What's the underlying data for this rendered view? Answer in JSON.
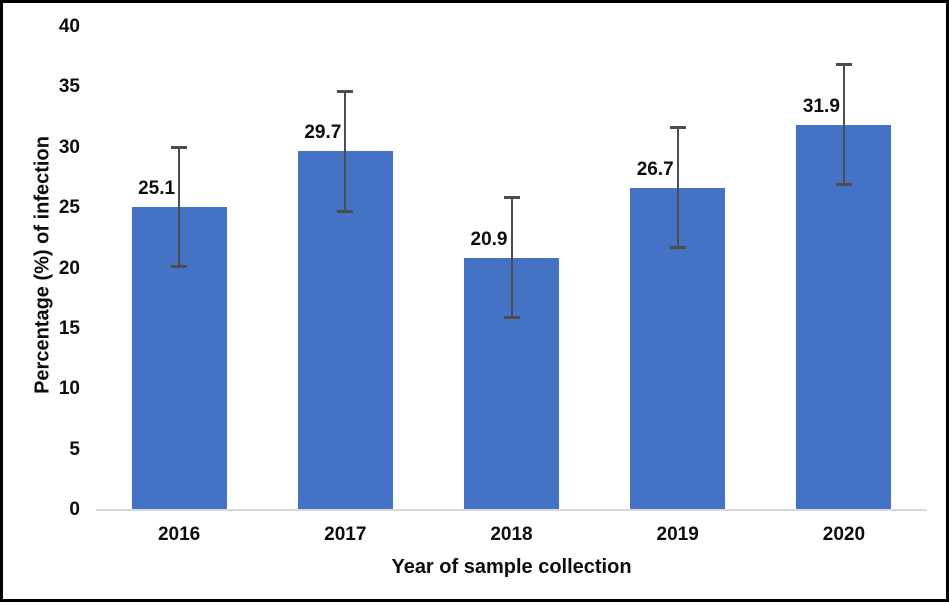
{
  "figure": {
    "background_color": "#ffffff",
    "border_color": "#000000"
  },
  "chart_data": {
    "type": "bar",
    "title": "",
    "categories": [
      "2016",
      "2017",
      "2018",
      "2019",
      "2020"
    ],
    "values": [
      25.1,
      29.7,
      20.9,
      26.7,
      31.9
    ],
    "error_bars": [
      5.0,
      5.0,
      5.0,
      5.0,
      5.0
    ],
    "xlabel": "Year of sample collection",
    "ylabel": "Percentage (%) of infection",
    "ylim": [
      0,
      40
    ],
    "yticks": [
      0,
      5,
      10,
      15,
      20,
      25,
      30,
      35,
      40
    ],
    "grid": false,
    "legend": "none",
    "data_labels": "outside-end, one decimal, left of error bar",
    "bar_color": "#4472C4",
    "error_bar_color": "#4d4d4d",
    "baseline_color": "#d9d9d9",
    "text_color": "#0d0d0d"
  }
}
